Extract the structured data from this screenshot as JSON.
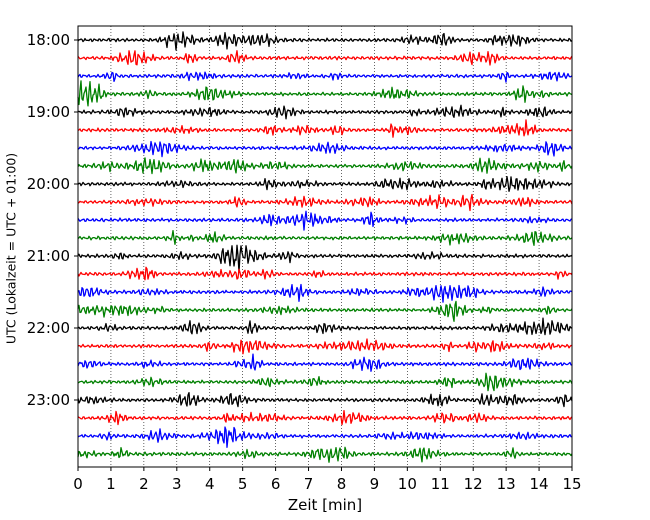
{
  "chart_data": {
    "type": "line",
    "title": "",
    "xlabel": "Zeit  [min]",
    "ylabel": "UTC (Lokalzeit = UTC + 01:00)",
    "xlim": [
      0,
      15
    ],
    "x_ticks": [
      "0",
      "1",
      "2",
      "3",
      "4",
      "5",
      "6",
      "7",
      "8",
      "9",
      "10",
      "11",
      "12",
      "13",
      "14",
      "15"
    ],
    "y_ticks": [
      "18:00",
      "19:00",
      "20:00",
      "21:00",
      "22:00",
      "23:00"
    ],
    "grid": "vertical dotted at each minute",
    "trace_colors": [
      "#000000",
      "#ff0000",
      "#0000ff",
      "#008000"
    ],
    "trace_count": 24,
    "trace_start_times": [
      "18:00",
      "18:15",
      "18:30",
      "18:45",
      "19:00",
      "19:15",
      "19:30",
      "19:45",
      "20:00",
      "20:15",
      "20:30",
      "20:45",
      "21:00",
      "21:15",
      "21:30",
      "21:45",
      "22:00",
      "22:15",
      "22:30",
      "22:45",
      "23:00",
      "23:15",
      "23:30",
      "23:45"
    ],
    "description_series": "Seismogram helicorder: each row is a 15-minute trace of ground motion, rows stacked every 15 minutes, colors cycling black, red, blue, green."
  }
}
